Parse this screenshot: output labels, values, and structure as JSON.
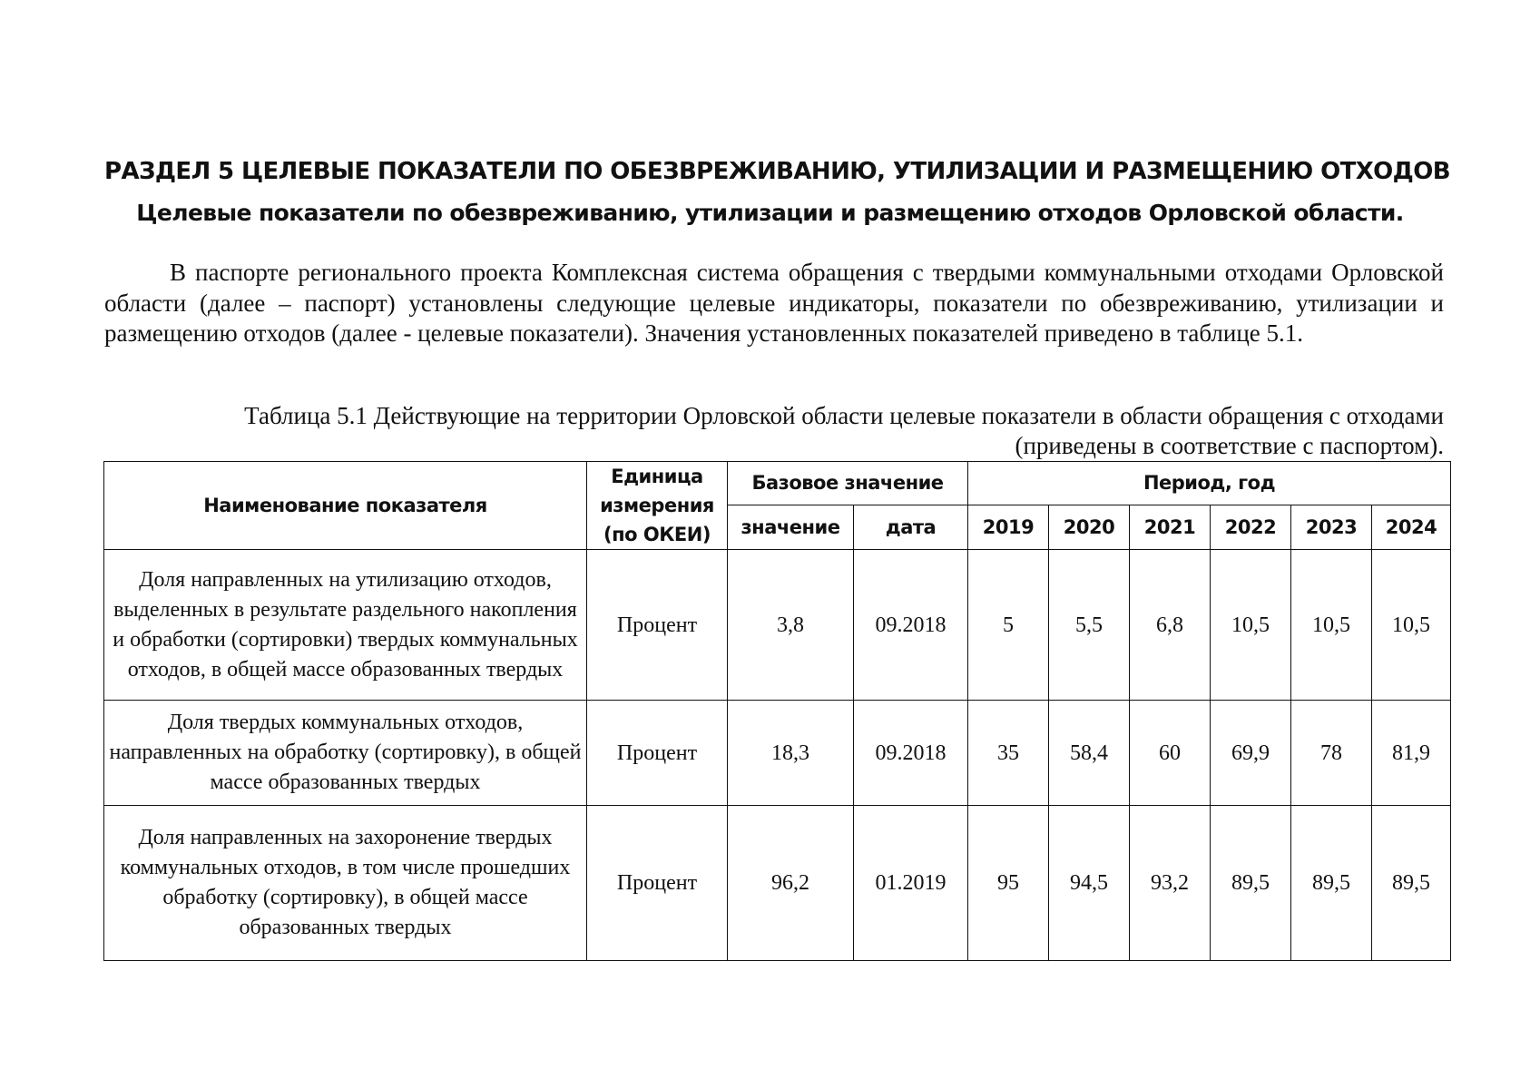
{
  "section_title": "РАЗДЕЛ 5 ЦЕЛЕВЫЕ ПОКАЗАТЕЛИ ПО ОБЕЗВРЕЖИВАНИЮ, УТИЛИЗАЦИИ И РАЗМЕЩЕНИЮ ОТХОДОВ",
  "subtitle": "Целевые показатели по обезвреживанию, утилизации и размещению отходов Орловской области.",
  "paragraph": "В паспорте регионального проекта Комплексная система обращения с твердыми коммунальными отходами Орловской области (далее – паспорт) установлены следующие целевые индикаторы, показатели по обезвреживанию, утилизации и размещению отходов (далее - целевые показатели). Значения установленных показателей приведено в таблице 5.1.",
  "caption": "Таблица 5.1 Действующие на территории Орловской области целевые показатели в области обращения с отходами (приведены в соответствие с паспортом).",
  "table": {
    "headers": {
      "name": "Наименование показателя",
      "unit": "Единица измерения (по ОКЕИ)",
      "base": "Базовое значение",
      "period": "Период, год",
      "value": "значение",
      "date": "дата",
      "years": [
        "2019",
        "2020",
        "2021",
        "2022",
        "2023",
        "2024"
      ]
    },
    "rows": [
      {
        "name": "Доля направленных на утилизацию отходов, выделенных в результате раздельного накопления и обработки (сортировки) твердых коммунальных отходов, в общей массе образованных твердых",
        "unit": "Процент",
        "value": "3,8",
        "date": "09.2018",
        "years": [
          "5",
          "5,5",
          "6,8",
          "10,5",
          "10,5",
          "10,5"
        ]
      },
      {
        "name": "Доля твердых коммунальных отходов, направленных на обработку (сортировку), в общей массе образованных твердых",
        "unit": "Процент",
        "value": "18,3",
        "date": "09.2018",
        "years": [
          "35",
          "58,4",
          "60",
          "69,9",
          "78",
          "81,9"
        ]
      },
      {
        "name": "Доля направленных на захоронение твердых коммунальных отходов, в том числе прошедших обработку (сортировку), в общей массе образованных твердых",
        "unit": "Процент",
        "value": "96,2",
        "date": "01.2019",
        "years": [
          "95",
          "94,5",
          "93,2",
          "89,5",
          "89,5",
          "89,5"
        ]
      }
    ]
  }
}
